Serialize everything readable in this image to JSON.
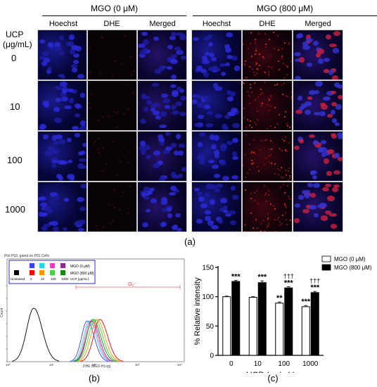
{
  "panel_a": {
    "group_left": "MGO (0 μM)",
    "group_right": "MGO (800 μM)",
    "columns": [
      "Hoechst",
      "DHE",
      "Merged"
    ],
    "ucp_label_line1": "UCP",
    "ucp_label_line2": "(μg/mL)",
    "rows": [
      "0",
      "10",
      "100",
      "1000"
    ],
    "label": "(a)"
  },
  "panel_b": {
    "title": "Plot P03, gated on P01.Cells",
    "legend_row1": [
      "",
      "",
      "",
      ""
    ],
    "legend_mgo0": "MGO (0 μM)",
    "legend_mgo800": "MGO (800 μM)",
    "legend_unstained": "Unstained",
    "legend_ucp_values": [
      "0",
      "10",
      "100",
      "1000"
    ],
    "legend_ucp_unit": "UCP (μg/mL)",
    "o2_label": "O₂⁻",
    "xlabel": "DHE (RED-HLog)",
    "ylabel": "Count",
    "label": "(b)",
    "colors": {
      "unstained": "#000000",
      "mgo0": [
        "#3d3dff",
        "#22d7e6",
        "#ff33cc",
        "#8e2d8e"
      ],
      "mgo800": [
        "#ff0000",
        "#ff9900",
        "#33dd33",
        "#138a13"
      ]
    }
  },
  "panel_c": {
    "label": "(c)",
    "legend": [
      "MGO (0 μM)",
      "MGO (800 μM)"
    ],
    "ylabel": "% Relative intensity",
    "xlabel": "UCP (μg/mL)",
    "significance": {
      "mgo800": [
        "***",
        "***",
        "***",
        "***"
      ],
      "mgo0": [
        "",
        "",
        "**",
        "***"
      ],
      "dagger": [
        "",
        "",
        "†††",
        "†††"
      ]
    }
  },
  "chart_data": {
    "type": "bar",
    "categories": [
      "0",
      "10",
      "100",
      "1000"
    ],
    "series": [
      {
        "name": "MGO (0 μM)",
        "values": [
          100,
          99,
          89,
          83
        ],
        "errors": [
          1,
          1,
          2,
          2
        ],
        "color": "#ffffff"
      },
      {
        "name": "MGO (800 μM)",
        "values": [
          126,
          124,
          115,
          107
        ],
        "errors": [
          2,
          3,
          2,
          2
        ],
        "color": "#000000"
      }
    ],
    "ylim": [
      0,
      150
    ],
    "yticks": [
      0,
      50,
      100,
      150
    ],
    "xlabel": "UCP (μg/mL)",
    "ylabel": "% Relative intensity"
  }
}
